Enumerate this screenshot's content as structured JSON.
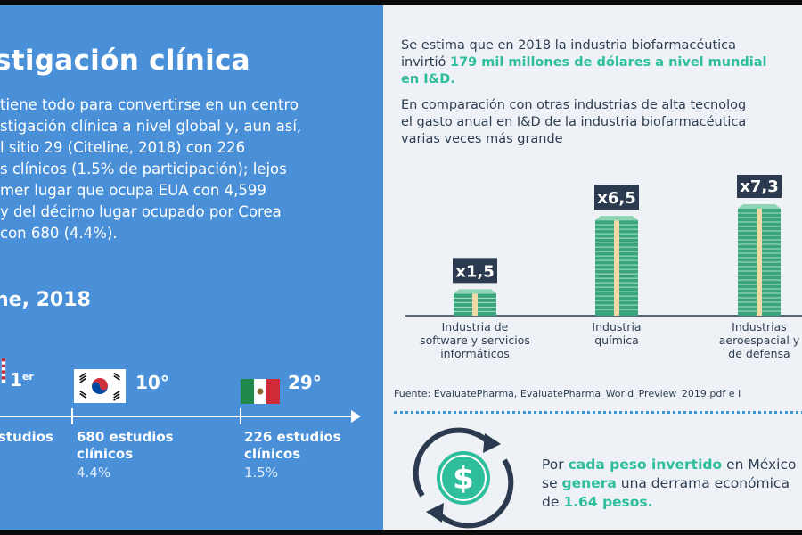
{
  "left": {
    "title": "stigación clínica",
    "paragraph": [
      "tiene todo para convertirse en un centro",
      "stigación clínica a nivel global y, aun así,",
      "l sitio 29 (Citeline, 2018) con 226",
      "s clínicos (1.5% de participación); lejos",
      "mer lugar que ocupa EUA con 4,599",
      "y del décimo lugar ocupado por Corea",
      "con 680 (4.4%)."
    ],
    "subtitle": "ne, 2018",
    "ranking": [
      {
        "rank": "1",
        "rank_sup": "er",
        "studies_line1": "studios",
        "studies_line2": "",
        "pct": ""
      },
      {
        "rank": "10°",
        "rank_sup": "",
        "studies_line1": "680 estudios",
        "studies_line2": "clínicos",
        "pct": "4.4%"
      },
      {
        "rank": "29°",
        "rank_sup": "",
        "studies_line1": "226 estudios",
        "studies_line2": "clínicos",
        "pct": "1.5%"
      }
    ]
  },
  "right": {
    "intro": {
      "line1": "Se estima que en 2018 la industria biofarmacéutica",
      "line2_pre": "invirtió ",
      "line2_hl": "179 mil millones de dólares a nivel mundial",
      "line3_hl": "en I&D."
    },
    "comparison": [
      "En comparación con otras industrias de alta tecnolog",
      "el gasto anual en I&D de la industria biofarmacéutica",
      "varias veces más grande"
    ],
    "source": "Fuente: EvaluatePharma, EvaluatePharma_World_Preview_2019.pdf e I",
    "bottom": {
      "l1_pre": "Por ",
      "l1_hl": "cada peso invertido",
      "l1_post": " en México",
      "l2_pre": "se ",
      "l2_hl": "genera",
      "l2_post": " una derrama económica",
      "l3_pre": "de ",
      "l3_hl": "1.64 pesos."
    },
    "icon": "dollar-cycle-icon"
  },
  "colors": {
    "blue_panel": "#4a90d8",
    "green": "#2fbe9c",
    "dark_label": "#2b3a4e",
    "text": "#2e3e52"
  },
  "chart_data": {
    "type": "bar",
    "categories": [
      [
        "Industria de",
        "software y servicios",
        "informáticos"
      ],
      [
        "Industria",
        "química"
      ],
      [
        "Industrias",
        "aeroespacial y",
        "de defensa"
      ]
    ],
    "values": [
      1.5,
      6.5,
      7.3
    ],
    "value_labels": [
      "x1,5",
      "x6,5",
      "x7,3"
    ]
  }
}
